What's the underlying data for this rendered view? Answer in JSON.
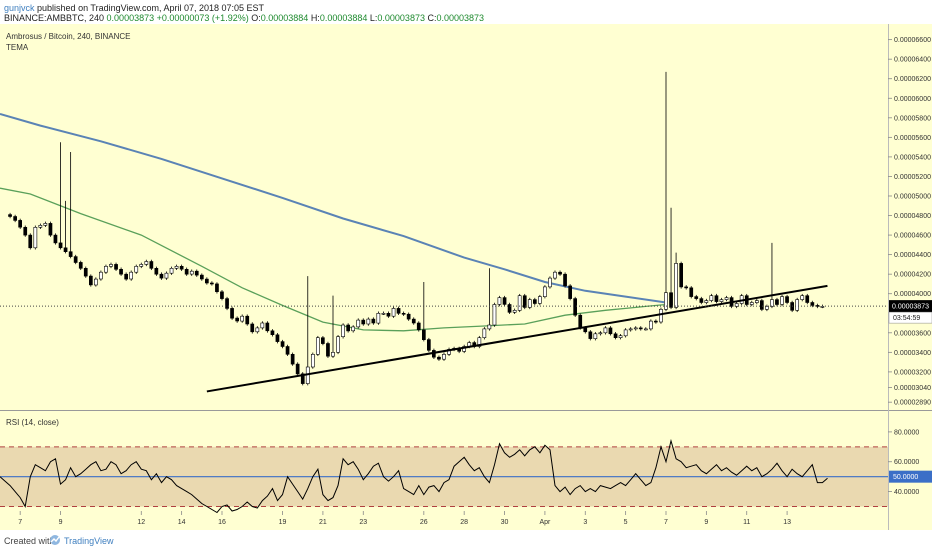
{
  "header": {
    "author": "gunjvck",
    "published_text": "published on TradingView.com, April 07, 2018 07:05 EST",
    "symbol_line": "BINANCE:AMBBTC, 240",
    "last": "0.00003873",
    "change": "+0.00000073 (+1.92%)",
    "o_label": "O:",
    "o_value": "0.00003884",
    "h_label": "H:",
    "h_value": "0.00003884",
    "l_label": "L:",
    "l_value": "0.00003873",
    "c_label": "C:",
    "c_value": "0.00003873"
  },
  "footer": {
    "created_with": "Created with",
    "brand": "TradingView"
  },
  "colors": {
    "background": "#ffffd2",
    "rsi_band": "#ead9b0",
    "up_candle": "#ffffff",
    "down_candle": "#000000",
    "ma_slow": "#5a83b5",
    "ma_fast": "#5aa05a",
    "trendline": "#000000",
    "rsi_line": "#000000",
    "rsi_mid": "#3b6fc7",
    "rsi_bounds": "#b04040",
    "price_tag": "#000000"
  },
  "chart_data": [
    {
      "type": "candlestick",
      "title": "Ambrosus / Bitcoin, 240, BINANCE",
      "subtitle": "TEMA",
      "yticks": [
        "0.00006600",
        "0.00006400",
        "0.00006200",
        "0.00006000",
        "0.00005800",
        "0.00005600",
        "0.00005400",
        "0.00005200",
        "0.00005000",
        "0.00004800",
        "0.00004600",
        "0.00004400",
        "0.00004200",
        "0.00004000",
        "0.00003600",
        "0.00003400",
        "0.00003200",
        "0.00003040",
        "0.00002890"
      ],
      "ytick_values": [
        6.6e-05,
        6.4e-05,
        6.2e-05,
        6e-05,
        5.8e-05,
        5.6e-05,
        5.4e-05,
        5.2e-05,
        5e-05,
        4.8e-05,
        4.6e-05,
        4.4e-05,
        4.2e-05,
        4e-05,
        3.6e-05,
        3.4e-05,
        3.2e-05,
        3.04e-05,
        2.89e-05
      ],
      "ylim": [
        2.81e-05,
        6.76e-05
      ],
      "last_price_label": "0.00003873",
      "countdown_label": "03:54:59",
      "x_ticks": [
        "7",
        "9",
        "12",
        "14",
        "16",
        "19",
        "21",
        "23",
        "26",
        "28",
        "30",
        "Apr",
        "3",
        "5",
        "7",
        "9",
        "11",
        "13"
      ],
      "x_tick_values": [
        0,
        4,
        12,
        16,
        20,
        26,
        30,
        34,
        40,
        44,
        48,
        52,
        56,
        60,
        64,
        68,
        72,
        76
      ],
      "x_range": [
        -2,
        86
      ],
      "candle_x_start": -1,
      "candle_x_step": 0.5,
      "closes": [
        4.79e-05,
        4.75e-05,
        4.68e-05,
        4.6e-05,
        4.47e-05,
        4.68e-05,
        4.7e-05,
        4.72e-05,
        4.6e-05,
        4.52e-05,
        4.47e-05,
        4.43e-05,
        4.38e-05,
        4.32e-05,
        4.26e-05,
        4.18e-05,
        4.09e-05,
        4.15e-05,
        4.22e-05,
        4.28e-05,
        4.3e-05,
        4.25e-05,
        4.2e-05,
        4.15e-05,
        4.22e-05,
        4.28e-05,
        4.3e-05,
        4.33e-05,
        4.26e-05,
        4.2e-05,
        4.16e-05,
        4.21e-05,
        4.26e-05,
        4.28e-05,
        4.25e-05,
        4.2e-05,
        4.23e-05,
        4.19e-05,
        4.15e-05,
        4.11e-05,
        4.1e-05,
        4.02e-05,
        3.95e-05,
        3.85e-05,
        3.75e-05,
        3.72e-05,
        3.77e-05,
        3.69e-05,
        3.61e-05,
        3.65e-05,
        3.7e-05,
        3.62e-05,
        3.58e-05,
        3.51e-05,
        3.46e-05,
        3.38e-05,
        3.28e-05,
        3.18e-05,
        3.08e-05,
        3.25e-05,
        3.38e-05,
        3.55e-05,
        3.49e-05,
        3.36e-05,
        3.4e-05,
        3.56e-05,
        3.68e-05,
        3.62e-05,
        3.66e-05,
        3.73e-05,
        3.69e-05,
        3.74e-05,
        3.7e-05,
        3.8e-05,
        3.8e-05,
        3.77e-05,
        3.85e-05,
        3.8e-05,
        3.79e-05,
        3.74e-05,
        3.7e-05,
        3.63e-05,
        3.53e-05,
        3.42e-05,
        3.35e-05,
        3.33e-05,
        3.38e-05,
        3.43e-05,
        3.44e-05,
        3.41e-05,
        3.46e-05,
        3.5e-05,
        3.46e-05,
        3.55e-05,
        3.64e-05,
        3.68e-05,
        3.89e-05,
        3.96e-05,
        3.89e-05,
        3.81e-05,
        3.83e-05,
        3.98e-05,
        3.86e-05,
        3.94e-05,
        3.9e-05,
        3.97e-05,
        4.07e-05,
        4.16e-05,
        4.22e-05,
        4.2e-05,
        4.08e-05,
        3.95e-05,
        3.78e-05,
        3.65e-05,
        3.61e-05,
        3.54e-05,
        3.59e-05,
        3.6e-05,
        3.65e-05,
        3.59e-05,
        3.55e-05,
        3.57e-05,
        3.63e-05,
        3.64e-05,
        3.65e-05,
        3.64e-05,
        3.64e-05,
        3.72e-05,
        3.71e-05,
        3.84e-05,
        4.01e-05,
        3.86e-05,
        4.31e-05,
        4.07e-05,
        4.06e-05,
        3.97e-05,
        3.95e-05,
        3.91e-05,
        3.93e-05,
        3.98e-05,
        3.92e-05,
        3.94e-05,
        3.96e-05,
        3.87e-05,
        3.9e-05,
        3.98e-05,
        3.89e-05,
        3.91e-05,
        3.93e-05,
        3.84e-05,
        3.87e-05,
        3.94e-05,
        3.89e-05,
        3.97e-05,
        3.91e-05,
        3.83e-05,
        3.94e-05,
        3.98e-05,
        3.91e-05,
        3.88e-05,
        3.87e-05,
        3.87e-05
      ],
      "spikes": [
        {
          "i": 10,
          "high": 5.55e-05
        },
        {
          "i": 11,
          "high": 4.95e-05
        },
        {
          "i": 12,
          "high": 5.45e-05
        },
        {
          "i": 59,
          "high": 4.18e-05
        },
        {
          "i": 64,
          "high": 3.98e-05
        },
        {
          "i": 82,
          "high": 4.12e-05
        },
        {
          "i": 95,
          "high": 4.26e-05
        },
        {
          "i": 130,
          "high": 6.27e-05
        },
        {
          "i": 131,
          "high": 4.88e-05
        },
        {
          "i": 132,
          "high": 4.42e-05
        },
        {
          "i": 151,
          "high": 4.52e-05
        }
      ],
      "ma_slow": [
        [
          -2,
          5.84e-05
        ],
        [
          2,
          5.72e-05
        ],
        [
          8,
          5.56e-05
        ],
        [
          14,
          5.38e-05
        ],
        [
          20,
          5.18e-05
        ],
        [
          26,
          4.98e-05
        ],
        [
          32,
          4.77e-05
        ],
        [
          38,
          4.59e-05
        ],
        [
          44,
          4.37e-05
        ],
        [
          48,
          4.25e-05
        ],
        [
          52,
          4.12e-05
        ],
        [
          56,
          4.03e-05
        ],
        [
          60,
          3.97e-05
        ],
        [
          64,
          3.91e-05
        ]
      ],
      "ma_fast": [
        [
          -2,
          5.08e-05
        ],
        [
          1,
          5.02e-05
        ],
        [
          6,
          4.82e-05
        ],
        [
          12,
          4.6e-05
        ],
        [
          18,
          4.28e-05
        ],
        [
          22,
          4.06e-05
        ],
        [
          26,
          3.88e-05
        ],
        [
          30,
          3.71e-05
        ],
        [
          34,
          3.63e-05
        ],
        [
          38,
          3.62e-05
        ],
        [
          42,
          3.65e-05
        ],
        [
          46,
          3.67e-05
        ],
        [
          50,
          3.69e-05
        ],
        [
          54,
          3.78e-05
        ],
        [
          58,
          3.83e-05
        ],
        [
          62,
          3.87e-05
        ],
        [
          64,
          3.89e-05
        ]
      ],
      "trendline": [
        [
          18.5,
          3e-05
        ],
        [
          80,
          4.08e-05
        ]
      ]
    },
    {
      "type": "line",
      "title": "RSI (14, close)",
      "yticks": [
        "80.0000",
        "60.0000",
        "40.0000"
      ],
      "ytick_values": [
        80,
        60,
        40
      ],
      "ylim": [
        27,
        94
      ],
      "upper_bound": 70,
      "lower_bound": 30,
      "mid_label": "50.0000",
      "mid_value": 50,
      "x_start": -2,
      "x_step": 0.5,
      "values": [
        50,
        47,
        44,
        40,
        36,
        30,
        50,
        58,
        56,
        54,
        60,
        62,
        45,
        48,
        56,
        50,
        52,
        55,
        58,
        60,
        54,
        55,
        60,
        58,
        52,
        54,
        58,
        60,
        55,
        54,
        48,
        52,
        46,
        50,
        48,
        44,
        42,
        40,
        38,
        35,
        32,
        30,
        28,
        26,
        30,
        31,
        27,
        28,
        30,
        33,
        30,
        29,
        34,
        37,
        42,
        34,
        38,
        50,
        45,
        40,
        35,
        42,
        50,
        55,
        38,
        34,
        36,
        44,
        62,
        58,
        60,
        55,
        48,
        52,
        57,
        59,
        50,
        47,
        50,
        54,
        42,
        40,
        38,
        44,
        38,
        43,
        44,
        40,
        46,
        48,
        57,
        60,
        63,
        58,
        54,
        56,
        50,
        46,
        58,
        72,
        66,
        63,
        65,
        68,
        64,
        68,
        70,
        66,
        71,
        68,
        44,
        40,
        43,
        38,
        42,
        44,
        40,
        42,
        40,
        44,
        43,
        42,
        44,
        46,
        44,
        48,
        52,
        48,
        44,
        46,
        56,
        70,
        60,
        74,
        62,
        60,
        56,
        57,
        58,
        54,
        52,
        55,
        58,
        54,
        56,
        53,
        51,
        54,
        57,
        54,
        56,
        50,
        52,
        55,
        59,
        54,
        50,
        55,
        52,
        50,
        54,
        58,
        46,
        46,
        49
      ]
    }
  ]
}
